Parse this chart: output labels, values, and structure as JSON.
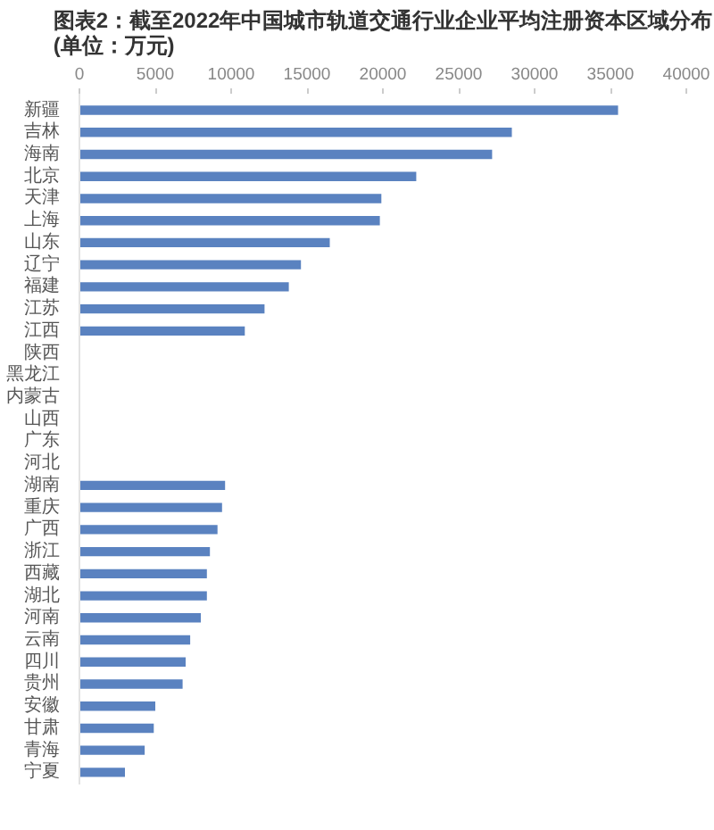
{
  "chart_data": {
    "type": "bar",
    "orientation": "horizontal",
    "title": "图表2：截至2022年中国城市轨道交通行业企业平均注册资本区域分布(单位：万元)",
    "categories": [
      "新疆",
      "吉林",
      "海南",
      "北京",
      "天津",
      "上海",
      "山东",
      "辽宁",
      "福建",
      "江苏",
      "江西",
      "陕西",
      "黑龙江",
      "内蒙古",
      "山西",
      "广东",
      "河北",
      "湖南",
      "重庆",
      "广西",
      "浙江",
      "西藏",
      "湖北",
      "河南",
      "云南",
      "四川",
      "贵州",
      "安徽",
      "甘肃",
      "青海",
      "宁夏"
    ],
    "values": [
      35500,
      28500,
      27200,
      22200,
      19900,
      19800,
      16500,
      14600,
      13800,
      12200,
      10900,
      null,
      null,
      null,
      null,
      null,
      null,
      9600,
      9400,
      9100,
      8600,
      8400,
      8400,
      8000,
      7300,
      7000,
      6800,
      5000,
      4900,
      4300,
      3000
    ],
    "color": "#5a82c0",
    "xlim": [
      0,
      40000
    ],
    "xticks": [
      0,
      5000,
      10000,
      15000,
      20000,
      25000,
      30000,
      35000,
      40000
    ]
  }
}
